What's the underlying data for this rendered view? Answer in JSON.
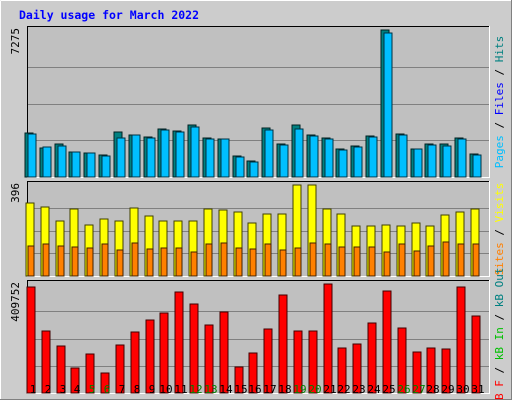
{
  "chart_data": [
    {
      "type": "bar",
      "title": "Daily usage for March 2022",
      "categories": [
        "1",
        "2",
        "3",
        "4",
        "5",
        "6",
        "7",
        "8",
        "9",
        "10",
        "11",
        "12",
        "13",
        "14",
        "15",
        "16",
        "17",
        "18",
        "19",
        "20",
        "21",
        "22",
        "23",
        "24",
        "25",
        "26",
        "27",
        "28",
        "29",
        "30",
        "31"
      ],
      "weekend_days": [
        "5",
        "6",
        "12",
        "13",
        "19",
        "20",
        "26",
        "27"
      ],
      "y_max_label": "7275",
      "ylim": [
        0,
        7275
      ],
      "series": [
        {
          "name": "Hits",
          "color": "#008080",
          "values": [
            2190,
            1440,
            1650,
            1250,
            1200,
            1090,
            2210,
            2100,
            1960,
            2380,
            2270,
            2570,
            1910,
            1880,
            1050,
            800,
            2420,
            1620,
            2560,
            2070,
            1950,
            1400,
            1530,
            2020,
            7275,
            2120,
            1400,
            1610,
            1630,
            1910,
            1130
          ]
        },
        {
          "name": "Files",
          "color": "#00bfff",
          "values": [
            2150,
            1470,
            1540,
            1250,
            1190,
            1040,
            1950,
            2090,
            1910,
            2340,
            2210,
            2450,
            1890,
            1860,
            1010,
            750,
            2310,
            1570,
            2400,
            2020,
            1890,
            1350,
            1500,
            1990,
            7140,
            2080,
            1380,
            1580,
            1550,
            1880,
            1080
          ]
        },
        {
          "name": "Pages",
          "color": "#0000ff",
          "values": [
            0,
            0,
            0,
            0,
            0,
            0,
            0,
            0,
            0,
            0,
            0,
            0,
            0,
            0,
            0,
            0,
            0,
            0,
            0,
            0,
            0,
            0,
            0,
            0,
            0,
            0,
            0,
            0,
            0,
            0,
            0
          ]
        }
      ]
    },
    {
      "type": "bar",
      "y_max_label": "396",
      "ylim": [
        0,
        396
      ],
      "series": [
        {
          "name": "Visits",
          "color": "#ffff00",
          "values": [
            318,
            300,
            240,
            290,
            224,
            246,
            240,
            294,
            260,
            240,
            240,
            240,
            290,
            288,
            278,
            230,
            268,
            270,
            396,
            396,
            290,
            270,
            216,
            216,
            224,
            216,
            232,
            216,
            266,
            278,
            290
          ]
        },
        {
          "name": "Sites",
          "color": "#ff8000",
          "values": [
            130,
            140,
            130,
            126,
            122,
            138,
            112,
            144,
            118,
            122,
            120,
            106,
            140,
            144,
            120,
            118,
            140,
            112,
            120,
            144,
            140,
            128,
            126,
            126,
            106,
            138,
            108,
            132,
            146,
            140,
            138
          ]
        }
      ]
    },
    {
      "type": "bar",
      "y_max_label": "409752",
      "ylim": [
        0,
        409752
      ],
      "series": [
        {
          "name": "KBytes In",
          "color": "#00c000",
          "values": [
            0,
            0,
            0,
            0,
            0,
            0,
            0,
            0,
            0,
            0,
            0,
            0,
            0,
            0,
            0,
            0,
            0,
            0,
            0,
            0,
            0,
            0,
            0,
            0,
            0,
            0,
            0,
            0,
            0,
            0,
            0
          ]
        },
        {
          "name": "KBytes Out",
          "color": "#008080",
          "values": [
            0,
            0,
            0,
            0,
            0,
            0,
            0,
            0,
            0,
            0,
            0,
            0,
            0,
            0,
            0,
            0,
            0,
            0,
            0,
            0,
            0,
            0,
            0,
            0,
            0,
            0,
            0,
            0,
            0,
            0,
            0
          ]
        },
        {
          "name": "KBytes F",
          "color": "#ff0000",
          "values": [
            400000,
            234000,
            178000,
            93000,
            146000,
            76000,
            180000,
            228000,
            276000,
            300000,
            379000,
            334000,
            257000,
            304000,
            97000,
            150000,
            241000,
            369000,
            234000,
            233000,
            409752,
            171000,
            185000,
            262000,
            382000,
            245000,
            155000,
            169000,
            166000,
            398000,
            289000
          ]
        }
      ]
    }
  ],
  "legend_right": [
    {
      "panel": 0,
      "items": [
        {
          "text": "Pages",
          "color": "#00bfff"
        },
        {
          "text": " / ",
          "color": "#000000"
        },
        {
          "text": "Files",
          "color": "#0000ff"
        },
        {
          "text": " / ",
          "color": "#000000"
        },
        {
          "text": "Hits",
          "color": "#008080"
        }
      ]
    },
    {
      "panel": 1,
      "items": [
        {
          "text": "Sites",
          "color": "#ff8000"
        },
        {
          "text": " / ",
          "color": "#000000"
        },
        {
          "text": "Visits",
          "color": "#ffff00"
        }
      ]
    },
    {
      "panel": 2,
      "items": [
        {
          "text": "kB F",
          "color": "#ff0000"
        },
        {
          "text": " / ",
          "color": "#000000"
        },
        {
          "text": "kB In",
          "color": "#00c000"
        },
        {
          "text": " / ",
          "color": "#000000"
        },
        {
          "text": "kB Out",
          "color": "#008080"
        }
      ]
    }
  ]
}
